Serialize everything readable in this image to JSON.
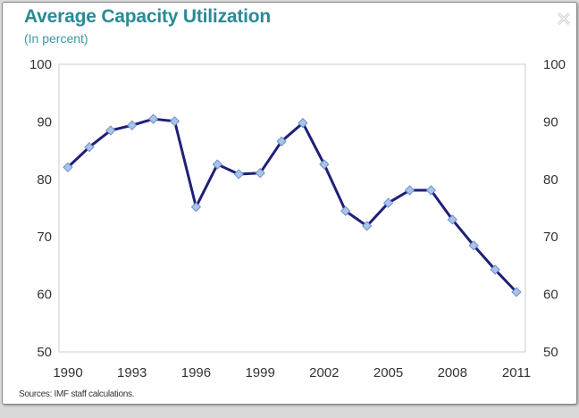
{
  "window": {
    "title": "Average Capacity Utilization",
    "subtitle": "(In percent)",
    "source": "Sources: IMF staff calculations.",
    "close_icon": "close-icon"
  },
  "colors": {
    "title": "#2b8a96",
    "line": "#1f1f7a",
    "marker_fill": "#a9c4ea",
    "marker_stroke": "#6d8fc9",
    "frame": "#d4d4d4"
  },
  "chart_data": {
    "type": "line",
    "title": "Average Capacity Utilization",
    "subtitle": "(In percent)",
    "xlabel": "",
    "ylabel": "",
    "ylim": [
      50,
      100
    ],
    "yticks": [
      50,
      60,
      70,
      80,
      90,
      100
    ],
    "ytick_labels": [
      "50",
      "60",
      "70",
      "80",
      "90",
      "100"
    ],
    "xlim": [
      1990,
      2011
    ],
    "xticks": [
      1990,
      1993,
      1996,
      1999,
      2002,
      2005,
      2008,
      2011
    ],
    "xtick_labels": [
      "1990",
      "1993",
      "1996",
      "1999",
      "2002",
      "2005",
      "2008",
      "2011"
    ],
    "dual_y_axis": true,
    "grid": false,
    "legend": "none",
    "x": [
      1990,
      1991,
      1992,
      1993,
      1994,
      1995,
      1996,
      1997,
      1998,
      1999,
      2000,
      2001,
      2002,
      2003,
      2004,
      2005,
      2006,
      2007,
      2008,
      2009,
      2010,
      2011
    ],
    "series": [
      {
        "name": "Average Capacity Utilization",
        "values": [
          82.1,
          85.6,
          88.5,
          89.4,
          90.5,
          90.1,
          75.2,
          82.6,
          80.9,
          81.1,
          86.6,
          89.8,
          82.6,
          74.5,
          71.9,
          75.9,
          78.1,
          78.1,
          73.0,
          68.5,
          64.3,
          60.4
        ]
      }
    ],
    "source": "Sources: IMF staff calculations."
  }
}
